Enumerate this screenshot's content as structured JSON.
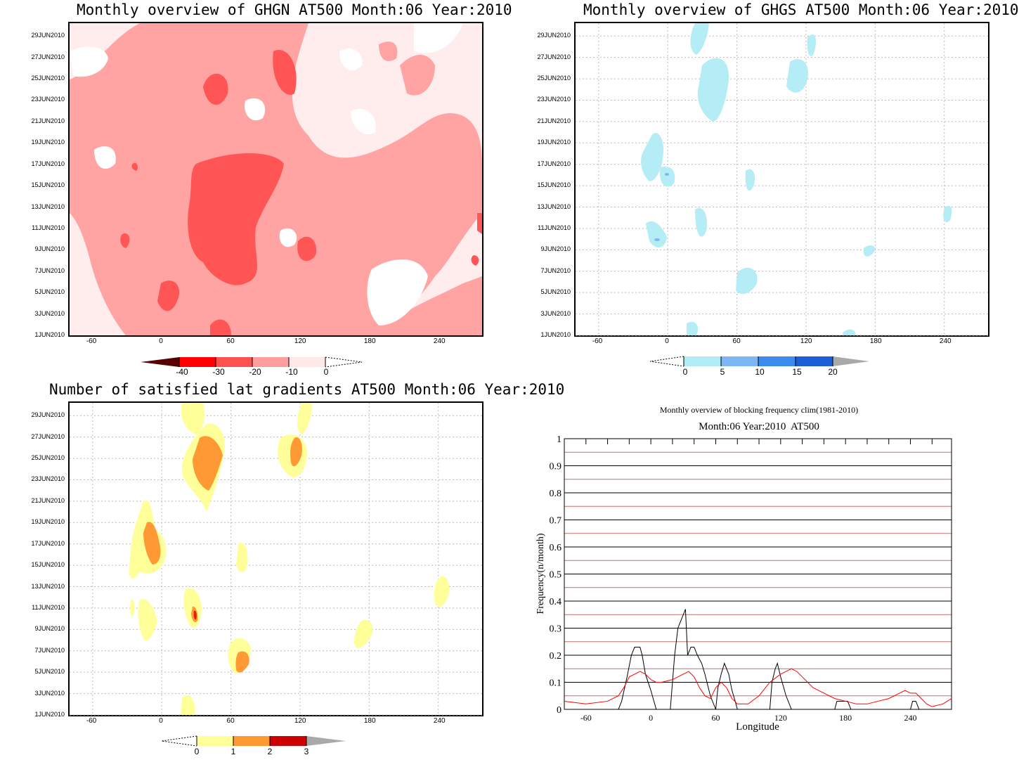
{
  "chart_data": [
    {
      "type": "heatmap",
      "title": "Monthly overview of GHGN AT500 Month:06 Year:2010",
      "y_ticks": [
        "29JUN2010",
        "27JUN2010",
        "25JUN2010",
        "23JUN2010",
        "21JUN2010",
        "19JUN2010",
        "17JUN2010",
        "15JUN2010",
        "13JUN2010",
        "11JUN2010",
        "9JUN2010",
        "7JUN2010",
        "5JUN2010",
        "3JUN2010",
        "1JUN2010"
      ],
      "x_ticks": [
        "-60",
        "0",
        "60",
        "120",
        "180",
        "240"
      ],
      "colorbar": {
        "labels": [
          "-40",
          "-30",
          "-20",
          "-10",
          "0"
        ],
        "colors": [
          "#5a0000",
          "#ff0000",
          "#ff5050",
          "#ff9c9c",
          "#ffe8e8"
        ]
      },
      "base_color": "#ffecec",
      "layers": [
        {
          "level": "-10",
          "color": "#ffa3a3"
        },
        {
          "level": "-20",
          "color": "#ff5555"
        }
      ]
    },
    {
      "type": "heatmap",
      "title": "Monthly overview of GHGS AT500 Month:06 Year:2010",
      "y_ticks": [
        "29JUN2010",
        "27JUN2010",
        "25JUN2010",
        "23JUN2010",
        "21JUN2010",
        "19JUN2010",
        "17JUN2010",
        "15JUN2010",
        "13JUN2010",
        "11JUN2010",
        "9JUN2010",
        "7JUN2010",
        "5JUN2010",
        "3JUN2010",
        "1JUN2010"
      ],
      "x_ticks": [
        "-60",
        "0",
        "60",
        "120",
        "180",
        "240"
      ],
      "colorbar": {
        "labels": [
          "0",
          "5",
          "10",
          "15",
          "20"
        ],
        "colors": [
          "#b0ecf4",
          "#7eb6f4",
          "#3c8cf0",
          "#1a5fd6",
          "#a9a9a9"
        ]
      },
      "layers": [
        {
          "level": "0-5",
          "color": "#b4edf5"
        },
        {
          "level": "5-10",
          "color": "#7eb6f4"
        }
      ]
    },
    {
      "type": "heatmap",
      "title": "Number of satisfied lat gradients AT500 Month:06 Year:2010",
      "y_ticks": [
        "29JUN2010",
        "27JUN2010",
        "25JUN2010",
        "23JUN2010",
        "21JUN2010",
        "19JUN2010",
        "17JUN2010",
        "15JUN2010",
        "13JUN2010",
        "11JUN2010",
        "9JUN2010",
        "7JUN2010",
        "5JUN2010",
        "3JUN2010",
        "1JUN2010"
      ],
      "x_ticks": [
        "-60",
        "0",
        "60",
        "120",
        "180",
        "240"
      ],
      "colorbar": {
        "labels": [
          "0",
          "1",
          "2",
          "3"
        ],
        "colors": [
          "#ffff99",
          "#ff9933",
          "#cc0000",
          "#a9a9a9"
        ]
      },
      "layers": [
        {
          "level": "1",
          "color": "#ffff9a"
        },
        {
          "level": "2",
          "color": "#ff9933"
        },
        {
          "level": "3",
          "color": "#dd2200"
        }
      ]
    },
    {
      "type": "line",
      "title": "Monthly overview of blocking frequency clim(1981-2010)",
      "subtitle": "Month:06 Year:2010  AT500",
      "xlabel": "Longitude",
      "ylabel": "Frequency(n/month)",
      "x_ticks": [
        "-60",
        "0",
        "60",
        "120",
        "180",
        "240"
      ],
      "y_ticks": [
        "0",
        "0.1",
        "0.2",
        "0.3",
        "0.4",
        "0.5",
        "0.6",
        "0.7",
        "0.8",
        "0.9",
        "1"
      ],
      "xlim": [
        -80,
        278
      ],
      "ylim": [
        0,
        1
      ],
      "grid": true,
      "series": [
        {
          "color": "#000000",
          "x": [
            -80,
            -30,
            -27,
            -22,
            -18,
            -15,
            -10,
            -8,
            -5,
            0,
            5,
            10,
            14,
            18,
            20,
            22,
            25,
            28,
            30,
            32,
            34,
            37,
            40,
            43,
            47,
            50,
            55,
            60,
            62,
            65,
            68,
            72,
            75,
            78,
            80,
            85,
            90,
            100,
            110,
            112,
            115,
            117,
            120,
            125,
            130,
            140,
            150,
            160,
            170,
            172,
            182,
            185,
            200,
            220,
            240,
            242,
            245,
            248,
            250,
            260,
            278
          ],
          "y": [
            0,
            0,
            0.03,
            0.12,
            0.2,
            0.23,
            0.23,
            0.2,
            0.13,
            0.07,
            0,
            0,
            0,
            0,
            0.1,
            0.2,
            0.3,
            0.33,
            0.35,
            0.37,
            0.2,
            0.23,
            0.23,
            0.2,
            0.17,
            0.13,
            0.05,
            0,
            0.08,
            0.13,
            0.17,
            0.13,
            0.07,
            0.03,
            0,
            0,
            0,
            0,
            0,
            0.1,
            0.15,
            0.17,
            0.12,
            0.05,
            0,
            0,
            0,
            0,
            0,
            0.03,
            0.03,
            0,
            0,
            0,
            0,
            0.03,
            0.03,
            0,
            0,
            0,
            0
          ]
        },
        {
          "color": "#ff0000",
          "x": [
            -80,
            -60,
            -40,
            -30,
            -25,
            -20,
            -15,
            -10,
            -5,
            0,
            5,
            10,
            20,
            30,
            35,
            40,
            45,
            50,
            55,
            60,
            65,
            70,
            75,
            80,
            90,
            100,
            110,
            120,
            125,
            130,
            135,
            140,
            150,
            160,
            170,
            180,
            190,
            200,
            210,
            220,
            230,
            235,
            240,
            245,
            250,
            255,
            260,
            270,
            278
          ],
          "y": [
            0.03,
            0.02,
            0.03,
            0.05,
            0.08,
            0.12,
            0.13,
            0.14,
            0.13,
            0.11,
            0.1,
            0.1,
            0.11,
            0.13,
            0.14,
            0.12,
            0.08,
            0.05,
            0.04,
            0.08,
            0.1,
            0.08,
            0.04,
            0.02,
            0.02,
            0.05,
            0.1,
            0.13,
            0.14,
            0.15,
            0.14,
            0.12,
            0.08,
            0.06,
            0.04,
            0.03,
            0.02,
            0.02,
            0.03,
            0.04,
            0.06,
            0.07,
            0.06,
            0.06,
            0.04,
            0.02,
            0.01,
            0.02,
            0.04
          ]
        }
      ]
    }
  ]
}
